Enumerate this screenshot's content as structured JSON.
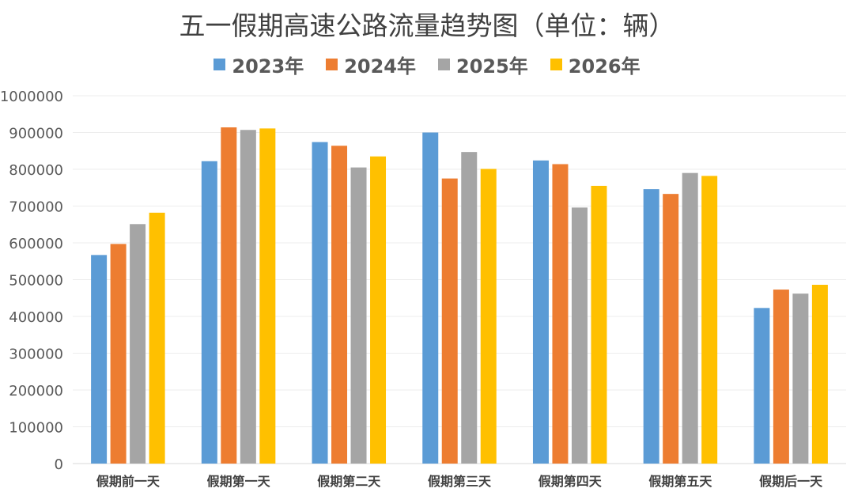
{
  "chart_data": {
    "type": "bar",
    "title": "五一假期高速公路流量趋势图（单位：辆）",
    "categories": [
      "假期前一天",
      "假期第一天",
      "假期第二天",
      "假期第三天",
      "假期第四天",
      "假期第五天",
      "假期后一天"
    ],
    "series": [
      {
        "name": "2023年",
        "color": "#5B9BD5",
        "values": [
          567000,
          822000,
          874000,
          900000,
          824000,
          746000,
          423000
        ]
      },
      {
        "name": "2024年",
        "color": "#ED7D31",
        "values": [
          597000,
          914000,
          864000,
          775000,
          814000,
          733000,
          473000
        ]
      },
      {
        "name": "2025年",
        "color": "#A5A5A5",
        "values": [
          651000,
          907000,
          805000,
          847000,
          696000,
          790000,
          462000
        ]
      },
      {
        "name": "2026年",
        "color": "#FFC000",
        "values": [
          682000,
          911000,
          835000,
          801000,
          755000,
          782000,
          486000
        ]
      }
    ],
    "ylim": [
      0,
      1000000
    ],
    "yticks": [
      "0",
      "100000",
      "200000",
      "300000",
      "400000",
      "500000",
      "600000",
      "700000",
      "800000",
      "900000",
      "1000000"
    ],
    "xlabel": "",
    "ylabel": "",
    "grid": true,
    "legend_position": "top"
  }
}
